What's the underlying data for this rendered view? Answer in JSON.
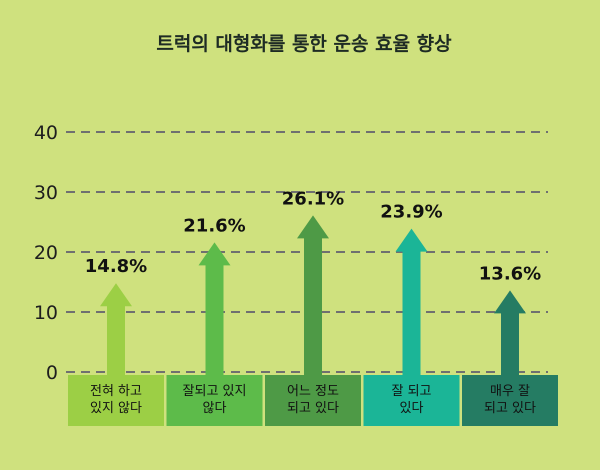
{
  "chart_data": {
    "type": "bar",
    "title": "트럭의 대형화를 통한 운송 효율 향상",
    "categories": [
      [
        "전혀 하고",
        "있지 않다"
      ],
      [
        "잘되고 있지",
        "않다"
      ],
      [
        "어느 정도",
        "되고 있다"
      ],
      [
        "잘 되고",
        "있다"
      ],
      [
        "매우 잘",
        "되고 있다"
      ]
    ],
    "values": [
      14.8,
      21.6,
      26.1,
      23.9,
      13.6
    ],
    "value_labels": [
      "14.8%",
      "21.6%",
      "26.1%",
      "23.9%",
      "13.6%"
    ],
    "yticks": [
      0,
      10,
      20,
      30,
      40
    ],
    "ylim": [
      0,
      40
    ],
    "grid": true,
    "colors": [
      "#9ccf45",
      "#5dbb4a",
      "#4e9a46",
      "#1bb597",
      "#257c63"
    ],
    "background": "#cfe17e"
  }
}
